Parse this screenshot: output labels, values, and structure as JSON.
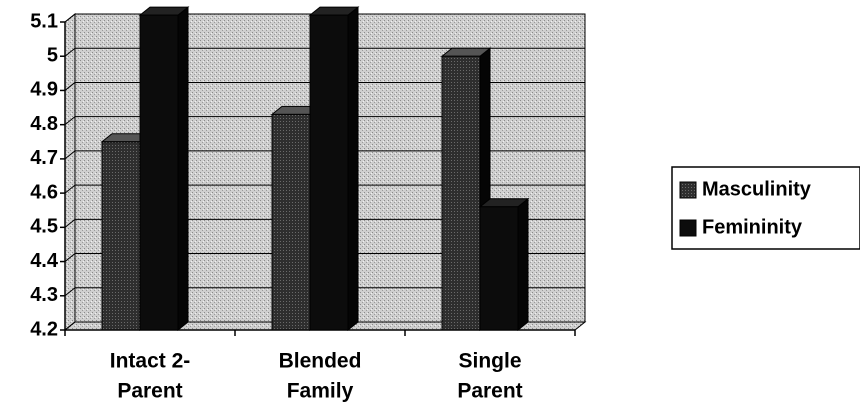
{
  "chart_data": {
    "type": "bar3d",
    "categories": [
      [
        "Intact 2-",
        "Parent"
      ],
      [
        "Blended",
        "Family"
      ],
      [
        "Single",
        "Parent"
      ]
    ],
    "series": [
      {
        "name": "Masculinity",
        "color": "#3a3a3a",
        "values": [
          4.75,
          4.83,
          5.0
        ]
      },
      {
        "name": "Femininity",
        "color": "#0c0c0c",
        "values": [
          5.12,
          5.12,
          4.56
        ]
      }
    ],
    "ylim": [
      4.2,
      5.1
    ],
    "yticks": [
      4.2,
      4.3,
      4.4,
      4.5,
      4.6,
      4.7,
      4.8,
      4.9,
      5,
      5.1
    ],
    "grid": true,
    "legend": "right"
  }
}
